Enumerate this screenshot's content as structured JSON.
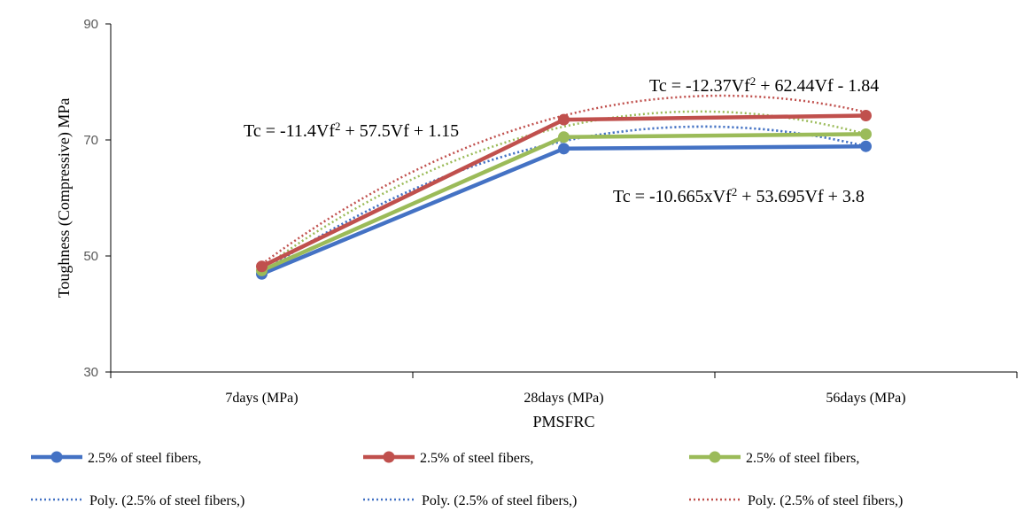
{
  "chart_data": {
    "type": "line",
    "categories": [
      "7days (MPa)",
      "28days (MPa)",
      "56days (MPa)"
    ],
    "xlabel": "PMSFRC",
    "ylabel": "Toughness (Compressive) MPa",
    "ylim": [
      30,
      90
    ],
    "yticks": [
      30,
      50,
      70,
      90
    ],
    "grid": false,
    "legend_position": "bottom",
    "series": [
      {
        "name": "2.5% of steel fibers,",
        "values": [
          46.9,
          68.5,
          68.9
        ],
        "color": "#4472C4",
        "style": "solid"
      },
      {
        "name": "2.5% of steel fibers,",
        "values": [
          48.2,
          73.5,
          74.2
        ],
        "color": "#C0504D",
        "style": "solid"
      },
      {
        "name": "2.5% of steel fibers,",
        "values": [
          47.5,
          70.5,
          71.0
        ],
        "color": "#9BBB59",
        "style": "solid"
      }
    ],
    "trendlines": [
      {
        "name": "Poly. (2.5% of steel fibers,)",
        "values": [
          47.2,
          69.8,
          68.9
        ],
        "color": "#4472C4",
        "style": "dotted"
      },
      {
        "name": "Poly. (2.5% of steel fibers,)",
        "values": [
          47.2,
          69.8,
          68.9
        ],
        "color": "#4472C4",
        "style": "dotted"
      },
      {
        "name": "Poly. (2.5% of steel fibers,)",
        "values": [
          48.6,
          74.2,
          74.8
        ],
        "color": "#C0504D",
        "style": "dotted"
      }
    ],
    "annotations": [
      {
        "label": "Tc = -11.4Vf",
        "sup": "2",
        "rest": " + 57.5Vf + 1.15"
      },
      {
        "label": "Tc = -12.37Vf",
        "sup": "2",
        "rest": " + 62.44Vf - 1.84"
      },
      {
        "label": "Tc = -10.665xVf",
        "sup": "2",
        "rest": " + 53.695Vf + 3.8"
      }
    ]
  }
}
